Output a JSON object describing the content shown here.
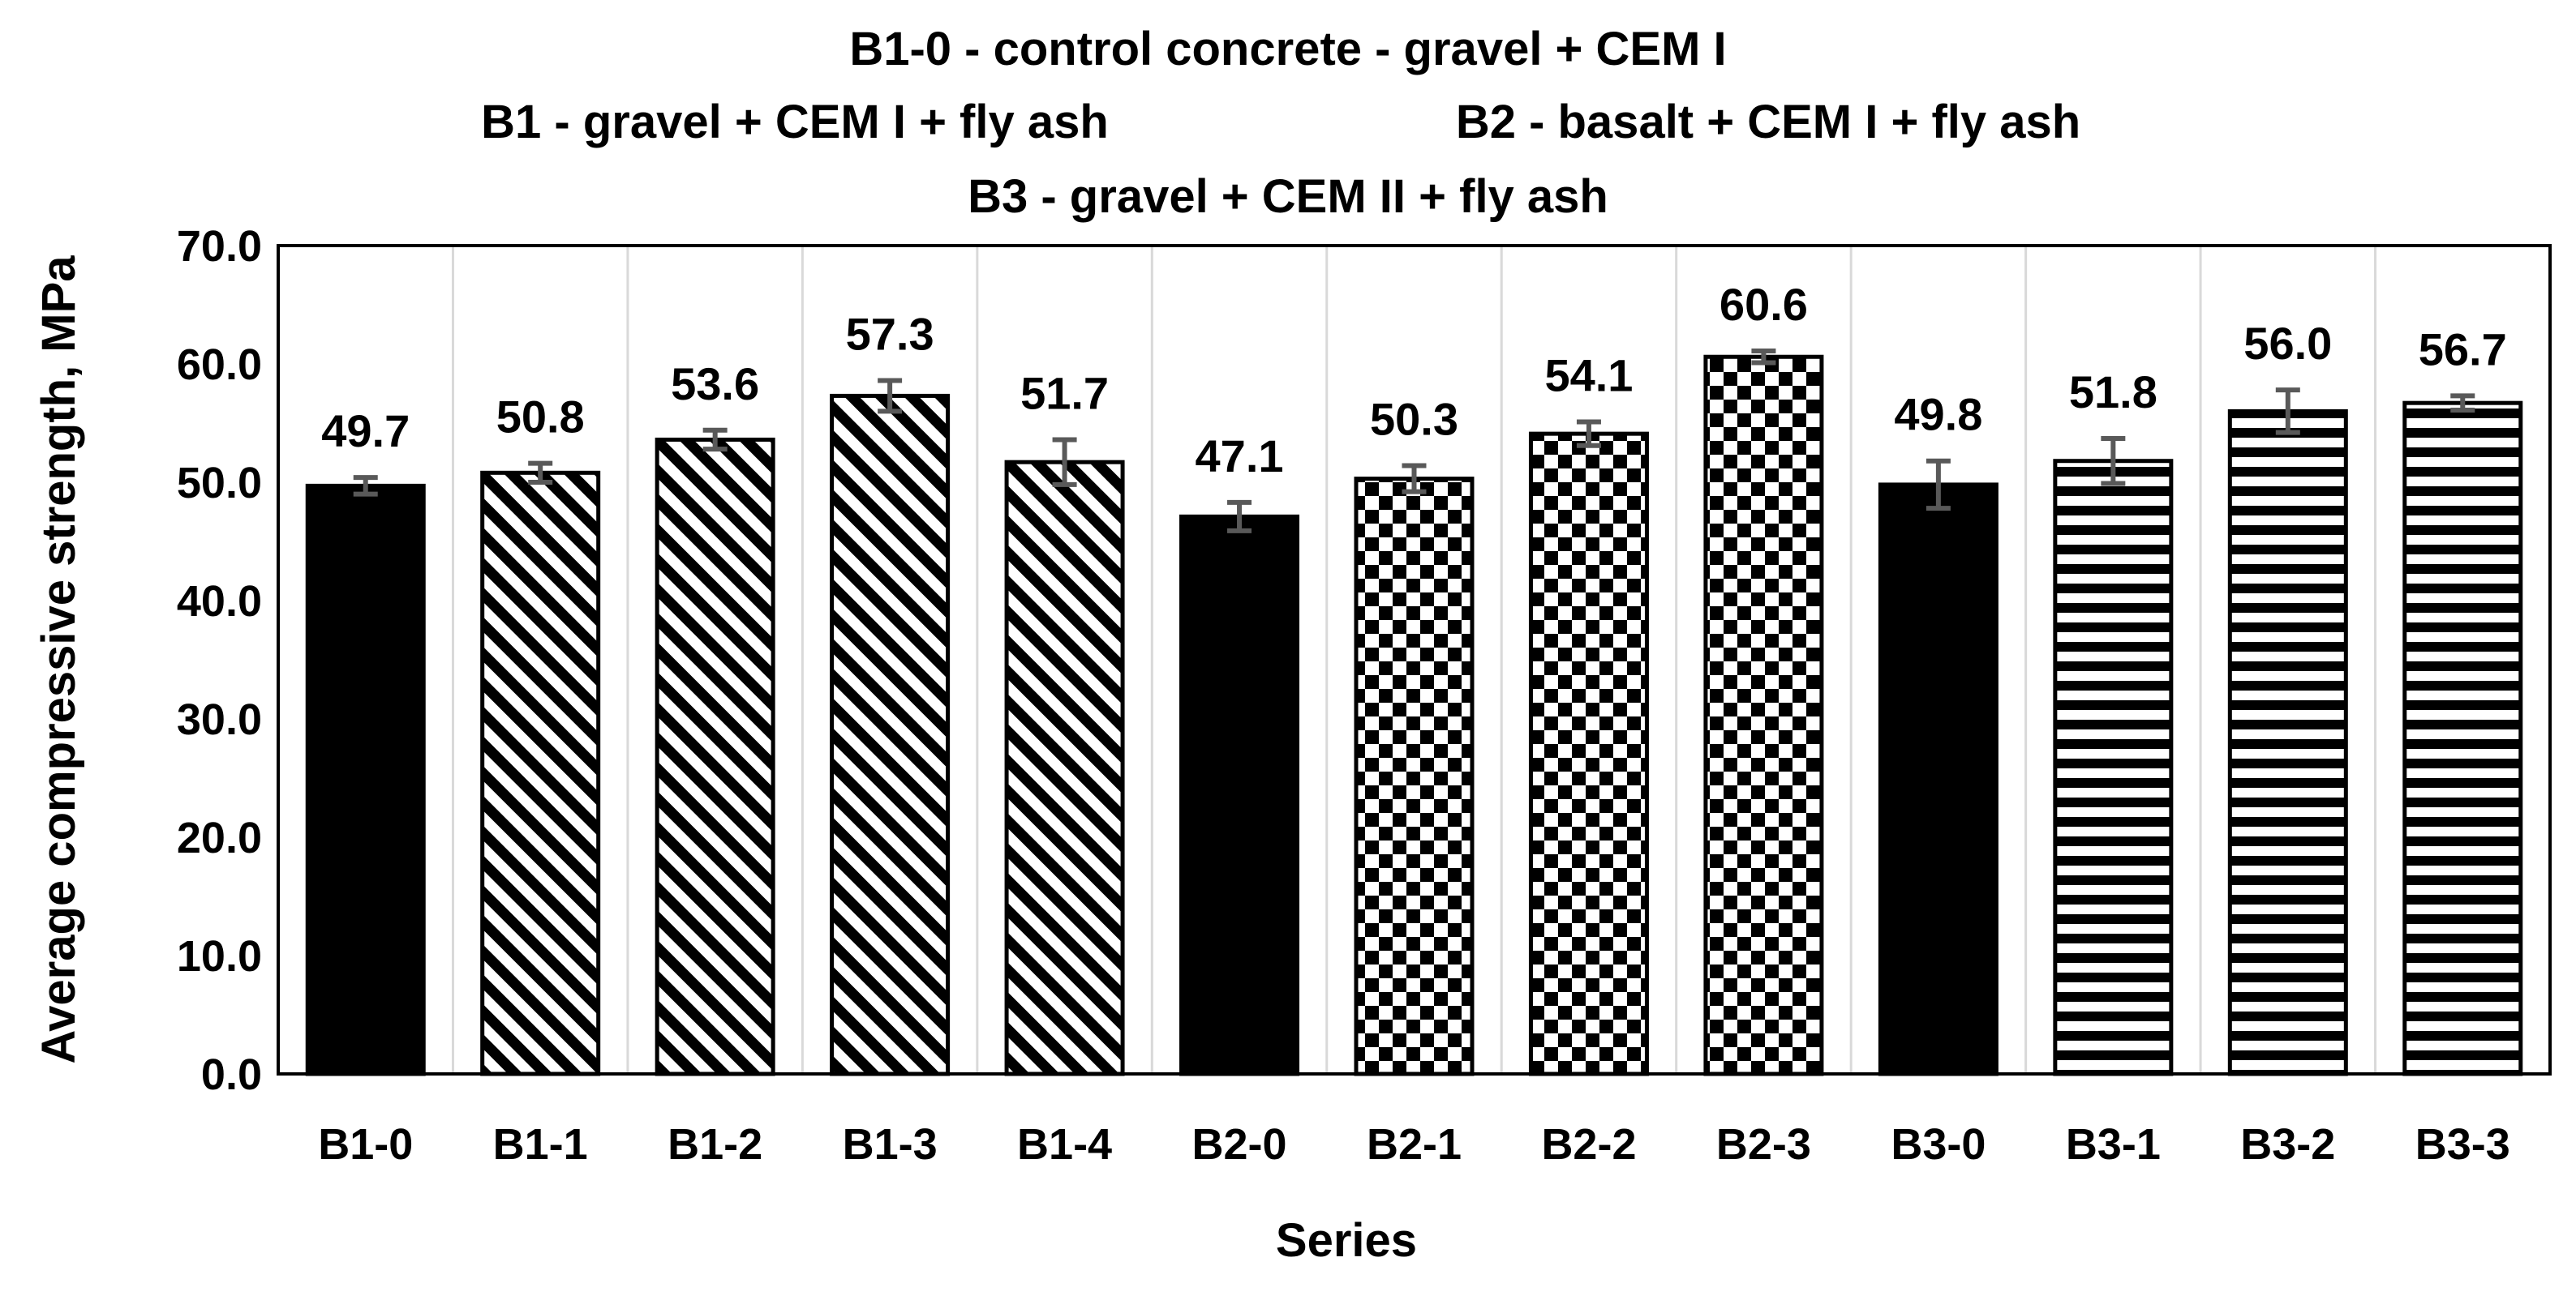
{
  "chart_data": {
    "type": "bar",
    "title_lines": [
      "B1-0 - control concrete - gravel + CEM I",
      "B1 - gravel + CEM I + fly ash",
      "B2 - basalt + CEM I + fly ash",
      "B3 - gravel + CEM II + fly ash"
    ],
    "xlabel": "Series",
    "ylabel": "Average compressive strength, MPa",
    "ylim": [
      0,
      70
    ],
    "yticks": [
      "0.0",
      "10.0",
      "20.0",
      "30.0",
      "40.0",
      "50.0",
      "60.0",
      "70.0"
    ],
    "grid": "vertical",
    "categories": [
      "B1-0",
      "B1-1",
      "B1-2",
      "B1-3",
      "B1-4",
      "B2-0",
      "B2-1",
      "B2-2",
      "B2-3",
      "B3-0",
      "B3-1",
      "B3-2",
      "B3-3"
    ],
    "values": [
      49.7,
      50.8,
      53.6,
      57.3,
      51.7,
      47.1,
      50.3,
      54.1,
      60.6,
      49.8,
      51.8,
      56.0,
      56.7
    ],
    "value_labels": [
      "49.7",
      "50.8",
      "53.6",
      "57.3",
      "51.7",
      "47.1",
      "50.3",
      "54.1",
      "60.6",
      "49.8",
      "51.8",
      "56.0",
      "56.7"
    ],
    "errors": [
      0.7,
      0.8,
      0.8,
      1.3,
      1.9,
      1.2,
      1.1,
      1.0,
      0.5,
      2.0,
      1.9,
      1.8,
      0.6
    ],
    "patterns": [
      "solid",
      "diagonal",
      "diagonal",
      "diagonal",
      "diagonal",
      "solid",
      "checker",
      "checker",
      "checker",
      "solid",
      "horizontal",
      "horizontal",
      "horizontal"
    ],
    "colors": {
      "bar": "#000000",
      "error_bar": "#595959",
      "grid": "#d9d9d9",
      "axis": "#000000"
    }
  }
}
